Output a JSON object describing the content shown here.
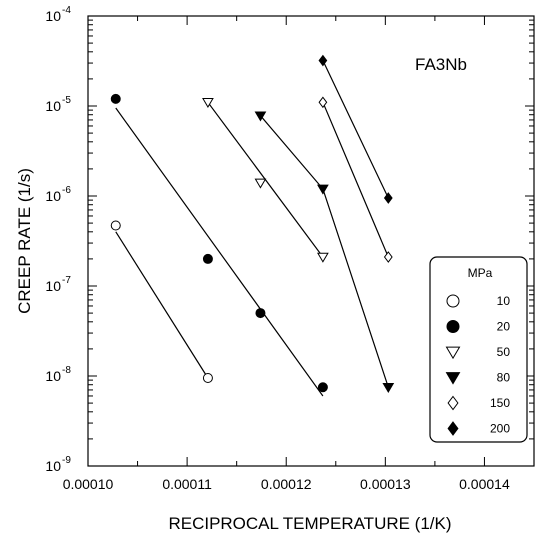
{
  "chart_data": {
    "type": "scatter",
    "title": "",
    "annotation": "FA3Nb",
    "xlabel": "RECIPROCAL TEMPERATURE (1/K)",
    "ylabel": "CREEP RATE (1/s)",
    "xlim": [
      0.0001,
      0.000145
    ],
    "ylim": [
      1e-09,
      0.0001
    ],
    "yscale": "log",
    "grid": false,
    "x_ticks": [
      0.0001,
      0.00011,
      0.00012,
      0.00013,
      0.00014
    ],
    "x_tick_labels": [
      "0.00010",
      "0.00011",
      "0.00012",
      "0.00013",
      "0.00014"
    ],
    "y_ticks": [
      {
        "value": 1e-09,
        "base": "10",
        "exp": "-9"
      },
      {
        "value": 1e-08,
        "base": "10",
        "exp": "-8"
      },
      {
        "value": 1e-07,
        "base": "10",
        "exp": "-7"
      },
      {
        "value": 1e-06,
        "base": "10",
        "exp": "-6"
      },
      {
        "value": 1e-05,
        "base": "10",
        "exp": "-5"
      },
      {
        "value": 0.0001,
        "base": "10",
        "exp": "-4"
      }
    ],
    "legend": {
      "title": "MPa",
      "position": "right"
    },
    "series": [
      {
        "name": "10",
        "marker": "circle-open",
        "points": [
          [
            0.0001028,
            4.7e-07
          ],
          [
            0.0001121,
            9.5e-09
          ]
        ],
        "fit": [
          [
            0.0001028,
            4e-07
          ],
          [
            0.0001121,
            9.5e-09
          ]
        ]
      },
      {
        "name": "20",
        "marker": "circle-filled",
        "points": [
          [
            0.0001028,
            1.2e-05
          ],
          [
            0.0001121,
            2e-07
          ],
          [
            0.0001174,
            5e-08
          ],
          [
            0.0001237,
            7.5e-09
          ]
        ],
        "fit": [
          [
            0.0001028,
            9.5e-06
          ],
          [
            0.0001237,
            6e-09
          ]
        ]
      },
      {
        "name": "50",
        "marker": "triangle-down-open",
        "points": [
          [
            0.0001121,
            1.1e-05
          ],
          [
            0.0001174,
            1.4e-06
          ],
          [
            0.0001237,
            2.1e-07
          ]
        ],
        "fit": [
          [
            0.0001121,
            1.1e-05
          ],
          [
            0.0001237,
            2.1e-07
          ]
        ]
      },
      {
        "name": "80",
        "marker": "triangle-down-filled",
        "points": [
          [
            0.0001174,
            7.8e-06
          ],
          [
            0.0001237,
            1.2e-06
          ],
          [
            0.0001303,
            7.5e-09
          ]
        ],
        "fit": [
          [
            0.0001174,
            7.8e-06
          ],
          [
            0.0001237,
            1.2e-06
          ],
          [
            0.0001303,
            7.5e-09
          ]
        ]
      },
      {
        "name": "150",
        "marker": "diamond-open",
        "points": [
          [
            0.0001237,
            1.1e-05
          ],
          [
            0.0001303,
            2.1e-07
          ]
        ],
        "fit": [
          [
            0.0001237,
            1.1e-05
          ],
          [
            0.0001303,
            2.1e-07
          ]
        ]
      },
      {
        "name": "200",
        "marker": "diamond-filled",
        "points": [
          [
            0.0001237,
            3.2e-05
          ],
          [
            0.0001303,
            9.5e-07
          ]
        ],
        "fit": [
          [
            0.0001237,
            3.2e-05
          ],
          [
            0.0001303,
            9.5e-07
          ]
        ]
      }
    ]
  }
}
